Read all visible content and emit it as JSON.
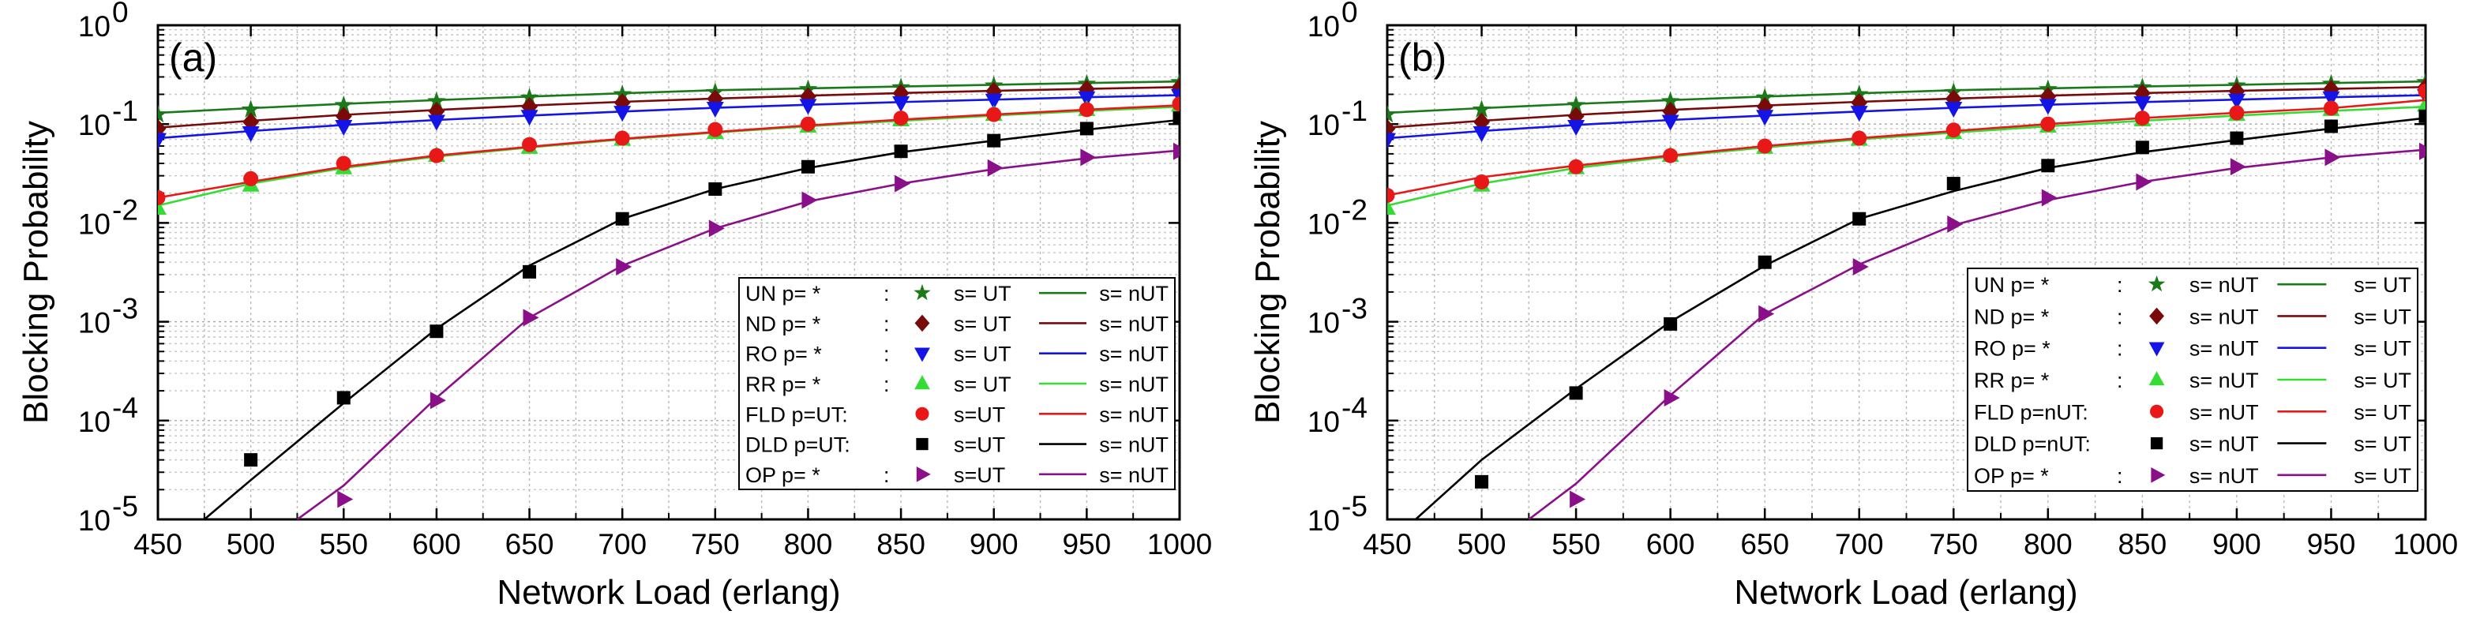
{
  "chart_data": [
    {
      "type": "line",
      "panel_label": "(a)",
      "xlabel": "Network Load (erlang)",
      "ylabel": "Blocking Probability",
      "yscale": "log",
      "xlim": [
        450,
        1000
      ],
      "ylim": [
        1e-05,
        1
      ],
      "grid": true,
      "legend_position": "bottom-right",
      "x_ticks": [
        "450",
        "500",
        "550",
        "600",
        "650",
        "700",
        "750",
        "800",
        "850",
        "900",
        "950",
        "1000"
      ],
      "y_ticks": [
        {
          "base": "10",
          "exp": "0"
        },
        {
          "base": "10",
          "exp": "-1"
        },
        {
          "base": "10",
          "exp": "-2"
        },
        {
          "base": "10",
          "exp": "-3"
        },
        {
          "base": "10",
          "exp": "-4"
        },
        {
          "base": "10",
          "exp": "-5"
        }
      ],
      "series": [
        {
          "name": "UN",
          "marker": "star",
          "color": "#1a7a1a",
          "legend": [
            "UN  p= *",
            ":",
            "s= UT",
            "s= nUT"
          ],
          "x": [
            450,
            500,
            550,
            600,
            650,
            700,
            750,
            800,
            850,
            900,
            950,
            1000
          ],
          "markers": [
            0.125,
            0.14,
            0.155,
            0.17,
            0.185,
            0.2,
            0.21,
            0.225,
            0.235,
            0.245,
            0.255,
            0.265
          ],
          "line": [
            0.13,
            0.145,
            0.16,
            0.175,
            0.19,
            0.205,
            0.22,
            0.23,
            0.24,
            0.25,
            0.26,
            0.27
          ]
        },
        {
          "name": "ND",
          "marker": "diamond",
          "color": "#7a0a0a",
          "legend": [
            "ND  p= *",
            ":",
            "s= UT",
            "s= nUT"
          ],
          "x": [
            450,
            500,
            550,
            600,
            650,
            700,
            750,
            800,
            850,
            900,
            950,
            1000
          ],
          "markers": [
            0.09,
            0.105,
            0.12,
            0.135,
            0.15,
            0.165,
            0.18,
            0.19,
            0.205,
            0.215,
            0.225,
            0.235
          ],
          "line": [
            0.092,
            0.108,
            0.124,
            0.139,
            0.154,
            0.168,
            0.181,
            0.194,
            0.206,
            0.217,
            0.227,
            0.237
          ]
        },
        {
          "name": "RO",
          "marker": "triangle-down",
          "color": "#1414e6",
          "legend": [
            "RO  p= *",
            ":",
            "s= UT",
            "s= nUT"
          ],
          "x": [
            450,
            500,
            550,
            600,
            650,
            700,
            750,
            800,
            850,
            900,
            950,
            1000
          ],
          "markers": [
            0.07,
            0.082,
            0.095,
            0.107,
            0.12,
            0.132,
            0.145,
            0.155,
            0.165,
            0.175,
            0.185,
            0.195
          ],
          "line": [
            0.072,
            0.085,
            0.098,
            0.11,
            0.122,
            0.134,
            0.146,
            0.157,
            0.167,
            0.177,
            0.187,
            0.196
          ]
        },
        {
          "name": "RR",
          "marker": "triangle-up",
          "color": "#33dd33",
          "legend": [
            "RR  p= *",
            ":",
            "s= UT",
            "s= nUT"
          ],
          "x": [
            450,
            500,
            550,
            600,
            650,
            700,
            750,
            800,
            850,
            900,
            950,
            1000
          ],
          "markers": [
            0.014,
            0.024,
            0.036,
            0.048,
            0.058,
            0.07,
            0.082,
            0.095,
            0.11,
            0.125,
            0.14,
            0.155
          ],
          "line": [
            0.015,
            0.025,
            0.036,
            0.047,
            0.058,
            0.07,
            0.082,
            0.095,
            0.108,
            0.122,
            0.136,
            0.15
          ]
        },
        {
          "name": "FLD",
          "marker": "circle",
          "color": "#e81818",
          "legend": [
            "FLD p=UT:",
            "",
            "s=UT",
            "s= nUT"
          ],
          "x": [
            450,
            500,
            550,
            600,
            650,
            700,
            750,
            800,
            850,
            900,
            950,
            1000
          ],
          "markers": [
            0.018,
            0.028,
            0.04,
            0.048,
            0.062,
            0.072,
            0.088,
            0.1,
            0.115,
            0.125,
            0.14,
            0.16
          ],
          "line": [
            0.018,
            0.026,
            0.037,
            0.048,
            0.059,
            0.071,
            0.083,
            0.097,
            0.111,
            0.125,
            0.14,
            0.155
          ]
        },
        {
          "name": "DLD",
          "marker": "square",
          "color": "#000000",
          "legend": [
            "DLD p=UT:",
            "",
            "s=UT",
            "s= nUT"
          ],
          "x": [
            500,
            550,
            600,
            650,
            700,
            750,
            800,
            850,
            900,
            950,
            1000
          ],
          "markers": [
            4e-05,
            0.00017,
            0.0008,
            0.0032,
            0.011,
            0.022,
            0.037,
            0.053,
            0.068,
            0.09,
            0.115
          ],
          "line_x": [
            475,
            500,
            550,
            600,
            650,
            700,
            750,
            800,
            850,
            900,
            950,
            1000
          ],
          "line": [
            1e-05,
            2.5e-05,
            0.00015,
            0.00085,
            0.0037,
            0.011,
            0.022,
            0.036,
            0.052,
            0.068,
            0.088,
            0.11
          ]
        },
        {
          "name": "OP",
          "marker": "triangle-right",
          "color": "#8a108a",
          "legend": [
            "OP   p= *",
            ":",
            "s=UT",
            "s= nUT"
          ],
          "x": [
            550,
            600,
            650,
            700,
            750,
            800,
            850,
            900,
            950,
            1000
          ],
          "markers": [
            1.6e-05,
            0.00016,
            0.0011,
            0.0036,
            0.0088,
            0.017,
            0.025,
            0.036,
            0.046,
            0.053
          ],
          "line_x": [
            525,
            550,
            600,
            650,
            700,
            750,
            800,
            850,
            900,
            950,
            1000
          ],
          "line": [
            1e-05,
            2.2e-05,
            0.00017,
            0.0011,
            0.0037,
            0.0088,
            0.0165,
            0.025,
            0.035,
            0.045,
            0.054
          ]
        }
      ]
    },
    {
      "type": "line",
      "panel_label": "(b)",
      "xlabel": "Network Load (erlang)",
      "ylabel": "Blocking Probability",
      "yscale": "log",
      "xlim": [
        450,
        1000
      ],
      "ylim": [
        1e-05,
        1
      ],
      "grid": true,
      "legend_position": "bottom-right",
      "x_ticks": [
        "450",
        "500",
        "550",
        "600",
        "650",
        "700",
        "750",
        "800",
        "850",
        "900",
        "950",
        "1000"
      ],
      "y_ticks": [
        {
          "base": "10",
          "exp": "0"
        },
        {
          "base": "10",
          "exp": "-1"
        },
        {
          "base": "10",
          "exp": "-2"
        },
        {
          "base": "10",
          "exp": "-3"
        },
        {
          "base": "10",
          "exp": "-4"
        },
        {
          "base": "10",
          "exp": "-5"
        }
      ],
      "series": [
        {
          "name": "UN",
          "marker": "star",
          "color": "#1a7a1a",
          "legend": [
            "UN  p= *",
            ":",
            "s= nUT",
            "s= UT"
          ],
          "x": [
            450,
            500,
            550,
            600,
            650,
            700,
            750,
            800,
            850,
            900,
            950,
            1000
          ],
          "markers": [
            0.125,
            0.14,
            0.155,
            0.17,
            0.185,
            0.2,
            0.21,
            0.225,
            0.235,
            0.245,
            0.255,
            0.265
          ],
          "line": [
            0.13,
            0.145,
            0.16,
            0.175,
            0.19,
            0.205,
            0.22,
            0.23,
            0.24,
            0.25,
            0.26,
            0.27
          ]
        },
        {
          "name": "ND",
          "marker": "diamond",
          "color": "#7a0a0a",
          "legend": [
            "ND  p= *",
            ":",
            "s= nUT",
            "s= UT"
          ],
          "x": [
            450,
            500,
            550,
            600,
            650,
            700,
            750,
            800,
            850,
            900,
            950,
            1000
          ],
          "markers": [
            0.09,
            0.105,
            0.12,
            0.135,
            0.15,
            0.165,
            0.18,
            0.19,
            0.205,
            0.215,
            0.225,
            0.235
          ],
          "line": [
            0.092,
            0.108,
            0.124,
            0.139,
            0.154,
            0.168,
            0.181,
            0.194,
            0.206,
            0.217,
            0.227,
            0.237
          ]
        },
        {
          "name": "RO",
          "marker": "triangle-down",
          "color": "#1414e6",
          "legend": [
            "RO  p= *",
            ":",
            "s= nUT",
            "s= UT"
          ],
          "x": [
            450,
            500,
            550,
            600,
            650,
            700,
            750,
            800,
            850,
            900,
            950,
            1000
          ],
          "markers": [
            0.07,
            0.082,
            0.095,
            0.107,
            0.12,
            0.132,
            0.145,
            0.155,
            0.165,
            0.175,
            0.185,
            0.195
          ],
          "line": [
            0.072,
            0.085,
            0.098,
            0.11,
            0.122,
            0.134,
            0.146,
            0.157,
            0.167,
            0.177,
            0.187,
            0.196
          ]
        },
        {
          "name": "RR",
          "marker": "triangle-up",
          "color": "#33dd33",
          "legend": [
            "RR  p= *",
            ":",
            "s= nUT",
            "s= UT"
          ],
          "x": [
            450,
            500,
            550,
            600,
            650,
            700,
            750,
            800,
            850,
            900,
            950,
            1000
          ],
          "markers": [
            0.014,
            0.024,
            0.036,
            0.048,
            0.058,
            0.07,
            0.082,
            0.095,
            0.11,
            0.125,
            0.14,
            0.155
          ],
          "line": [
            0.015,
            0.025,
            0.036,
            0.047,
            0.058,
            0.07,
            0.082,
            0.095,
            0.108,
            0.122,
            0.136,
            0.15
          ]
        },
        {
          "name": "FLD",
          "marker": "circle",
          "color": "#e81818",
          "legend": [
            "FLD p=nUT:",
            "",
            "s= nUT",
            "s= UT"
          ],
          "x": [
            450,
            500,
            550,
            600,
            650,
            700,
            750,
            800,
            850,
            900,
            950,
            1000
          ],
          "markers": [
            0.019,
            0.026,
            0.037,
            0.048,
            0.06,
            0.072,
            0.087,
            0.1,
            0.115,
            0.13,
            0.145,
            0.215
          ],
          "line": [
            0.019,
            0.029,
            0.038,
            0.048,
            0.06,
            0.072,
            0.085,
            0.1,
            0.115,
            0.13,
            0.145,
            0.175
          ]
        },
        {
          "name": "DLD",
          "marker": "square",
          "color": "#000000",
          "legend": [
            "DLD p=nUT:",
            "",
            "s= nUT",
            "s= UT"
          ],
          "x": [
            500,
            550,
            600,
            650,
            700,
            750,
            800,
            850,
            900,
            950,
            1000
          ],
          "markers": [
            2.4e-05,
            0.00019,
            0.00095,
            0.004,
            0.011,
            0.025,
            0.038,
            0.058,
            0.072,
            0.095,
            0.12
          ],
          "line_x": [
            465,
            500,
            550,
            600,
            650,
            700,
            750,
            800,
            850,
            900,
            950,
            1000
          ],
          "line": [
            1e-05,
            4e-05,
            0.00021,
            0.001,
            0.0037,
            0.011,
            0.021,
            0.036,
            0.052,
            0.069,
            0.09,
            0.115
          ]
        },
        {
          "name": "OP",
          "marker": "triangle-right",
          "color": "#8a108a",
          "legend": [
            "OP   p= *",
            ":",
            "s= nUT",
            "s= UT"
          ],
          "x": [
            550,
            600,
            650,
            700,
            750,
            800,
            850,
            900,
            950,
            1000
          ],
          "markers": [
            1.6e-05,
            0.00017,
            0.0012,
            0.0036,
            0.0097,
            0.018,
            0.026,
            0.037,
            0.046,
            0.053
          ],
          "line_x": [
            525,
            550,
            600,
            650,
            700,
            750,
            800,
            850,
            900,
            950,
            1000
          ],
          "line": [
            1e-05,
            2.3e-05,
            0.00018,
            0.0012,
            0.0038,
            0.0095,
            0.017,
            0.026,
            0.036,
            0.046,
            0.055
          ]
        }
      ]
    }
  ]
}
